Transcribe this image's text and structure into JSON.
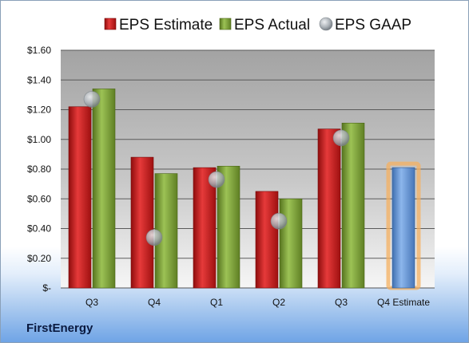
{
  "company": "FirstEnergy",
  "chart_data": {
    "type": "bar",
    "categories": [
      "Q3",
      "Q4",
      "Q1",
      "Q2",
      "Q3",
      "Q4 Estimate"
    ],
    "series": [
      {
        "name": "EPS Estimate",
        "values": [
          1.22,
          0.88,
          0.81,
          0.65,
          1.07,
          null
        ],
        "color": "#d02020"
      },
      {
        "name": "EPS Actual",
        "values": [
          1.34,
          0.77,
          0.82,
          0.6,
          1.11,
          null
        ],
        "color": "#7fa33a"
      },
      {
        "name": "EPS GAAP",
        "type": "scatter",
        "values": [
          1.27,
          0.34,
          0.73,
          0.45,
          1.01,
          null
        ],
        "color": "#a0a8b0"
      },
      {
        "name": "EPS Estimate",
        "legend": false,
        "values": [
          null,
          null,
          null,
          null,
          null,
          0.81
        ],
        "color": "#5a8fd6",
        "highlight": "#f5b060"
      }
    ],
    "ylim": [
      0,
      1.6
    ],
    "yticks": [
      "$-",
      "$0.20",
      "$0.40",
      "$0.60",
      "$0.80",
      "$1.00",
      "$1.20",
      "$1.40",
      "$1.60"
    ],
    "ytick_values": [
      0,
      0.2,
      0.4,
      0.6,
      0.8,
      1.0,
      1.2,
      1.4,
      1.6
    ],
    "legend_position": "top",
    "grid": true
  }
}
